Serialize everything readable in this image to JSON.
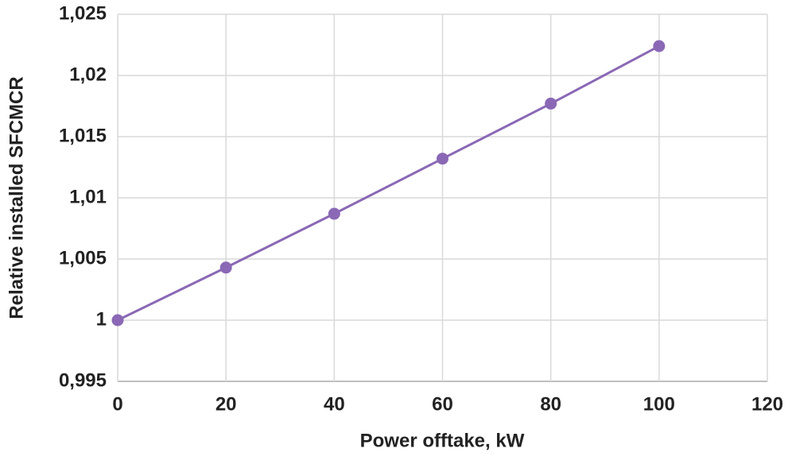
{
  "chart_data": {
    "type": "line",
    "xlabel": "Power offtake, kW",
    "ylabel": "Relative installed SFCMCR",
    "x": [
      0,
      20,
      40,
      60,
      80,
      100
    ],
    "series": [
      {
        "color": "#8a68b5",
        "values": [
          1.0,
          1.0043,
          1.0087,
          1.0132,
          1.0177,
          1.0224
        ]
      }
    ],
    "xlim": [
      0,
      120
    ],
    "xticks": [
      0,
      20,
      40,
      60,
      80,
      100,
      120
    ],
    "ylim": [
      0.995,
      1.025
    ],
    "yticks": [
      {
        "value": 0.995,
        "label": "0,995"
      },
      1,
      {
        "value": 1.005,
        "label": "1,005"
      },
      {
        "value": 1.01,
        "label": "1,01"
      },
      {
        "value": 1.015,
        "label": "1,015"
      },
      {
        "value": 1.02,
        "label": "1,02"
      },
      {
        "value": 1.025,
        "label": "1,025"
      }
    ],
    "grid": true
  }
}
